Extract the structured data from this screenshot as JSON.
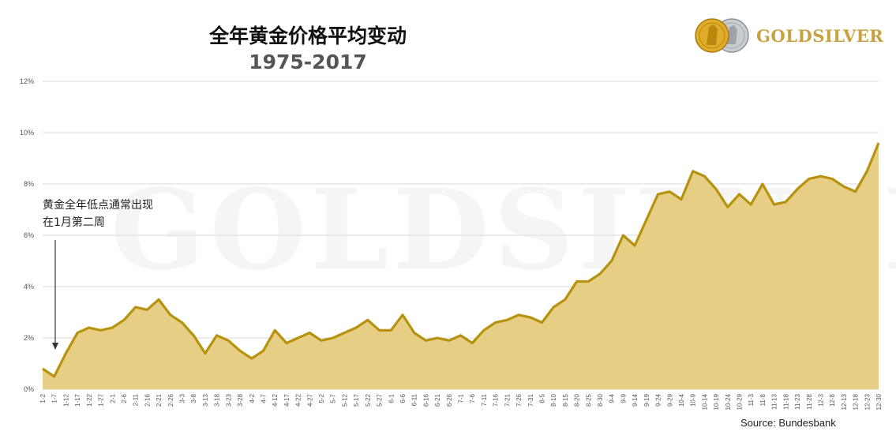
{
  "header": {
    "title": "全年黄金价格平均变动",
    "subtitle": "1975-2017"
  },
  "logo": {
    "text": "GOLDSILVER",
    "icon": "gold-silver-coins-icon",
    "gold_color": "#d9a821",
    "silver_color": "#bfc3c7"
  },
  "watermark": "GOLDSILVER",
  "annotation": {
    "line1": "黄金全年低点通常出现",
    "line2": "在1月第二周"
  },
  "source": "Source: Bundesbank",
  "colors": {
    "line": "#b8920e",
    "fill": "#e6cf85",
    "grid": "#d9d9d9"
  },
  "chart_data": {
    "type": "area",
    "ylim": [
      0,
      12
    ],
    "yticks": [
      "0%",
      "2%",
      "4%",
      "6%",
      "8%",
      "10%",
      "12%"
    ],
    "grid": true,
    "legend": "none",
    "x": [
      "1-2",
      "1-7",
      "1-12",
      "1-17",
      "1-22",
      "1-27",
      "2-1",
      "2-6",
      "2-11",
      "2-16",
      "2-21",
      "2-26",
      "3-3",
      "3-8",
      "3-13",
      "3-18",
      "3-23",
      "3-28",
      "4-2",
      "4-7",
      "4-12",
      "4-17",
      "4-22",
      "4-27",
      "5-2",
      "5-7",
      "5-12",
      "5-17",
      "5-22",
      "5-27",
      "6-1",
      "6-6",
      "6-11",
      "6-16",
      "6-21",
      "6-26",
      "7-1",
      "7-6",
      "7-11",
      "7-16",
      "7-21",
      "7-26",
      "7-31",
      "8-5",
      "8-10",
      "8-15",
      "8-20",
      "8-25",
      "8-30",
      "9-4",
      "9-9",
      "9-14",
      "9-19",
      "9-24",
      "9-29",
      "10-4",
      "10-9",
      "10-14",
      "10-19",
      "10-24",
      "10-29",
      "11-3",
      "11-8",
      "11-13",
      "11-18",
      "11-23",
      "11-28",
      "12-3",
      "12-8",
      "12-13",
      "12-18",
      "12-23",
      "12-30"
    ],
    "x_display": [
      "1-2",
      "1-7",
      "1-12",
      "1-17",
      "1-22",
      "1-27",
      "2-1",
      "2-6",
      "2-11",
      "2-16",
      "2-21",
      "2-26",
      "3-3",
      "3-8",
      "3-13",
      "3-18",
      "3-23",
      "3-28",
      "4-2",
      "4-7",
      "4-12",
      "4-17",
      "4-22",
      "4-27",
      "5-2",
      "5-7",
      "5-12",
      "5-17",
      "5-22",
      "5-27",
      "6-1",
      "6-6",
      "6-11",
      "6-16",
      "6-21",
      "6-26",
      "7-1",
      "7-6",
      "7-11",
      "7-16",
      "7-21",
      "7-26",
      "7-31",
      "8-5",
      "8-10",
      "8-15",
      "8-20",
      "8-25",
      "8-30",
      "9-4",
      "9-9",
      "9-14",
      "9-19",
      "9-24",
      "9-29",
      "10-4",
      "10-9",
      "10-14",
      "10-19",
      "10-24",
      "10-29",
      "11-3",
      "11-8",
      "11-13",
      "11-18",
      "11-23",
      "11-28",
      "12-3",
      "12-8",
      "12-13",
      "12-18",
      "12-23",
      "12-30"
    ],
    "series": [
      {
        "values": [
          0.8,
          0.5,
          1.4,
          2.2,
          2.4,
          2.3,
          2.4,
          2.7,
          3.2,
          3.1,
          3.5,
          2.9,
          2.6,
          2.1,
          1.4,
          2.1,
          1.9,
          1.5,
          1.2,
          1.5,
          2.3,
          1.8,
          2.0,
          2.2,
          1.9,
          2.0,
          2.2,
          2.4,
          2.7,
          2.3,
          2.3,
          2.9,
          2.2,
          1.9,
          2.0,
          1.9,
          2.1,
          1.8,
          2.3,
          2.6,
          2.7,
          2.9,
          2.8,
          2.6,
          3.2,
          3.5,
          4.2,
          4.2,
          4.5,
          5.0,
          6.0,
          5.6,
          6.6,
          7.6,
          7.7,
          7.4,
          8.5,
          8.3,
          7.8,
          7.1,
          7.6,
          7.2,
          8.0,
          7.2,
          7.3,
          7.8,
          8.2,
          8.3,
          8.2,
          7.9,
          7.7,
          8.5,
          9.6
        ]
      }
    ]
  }
}
